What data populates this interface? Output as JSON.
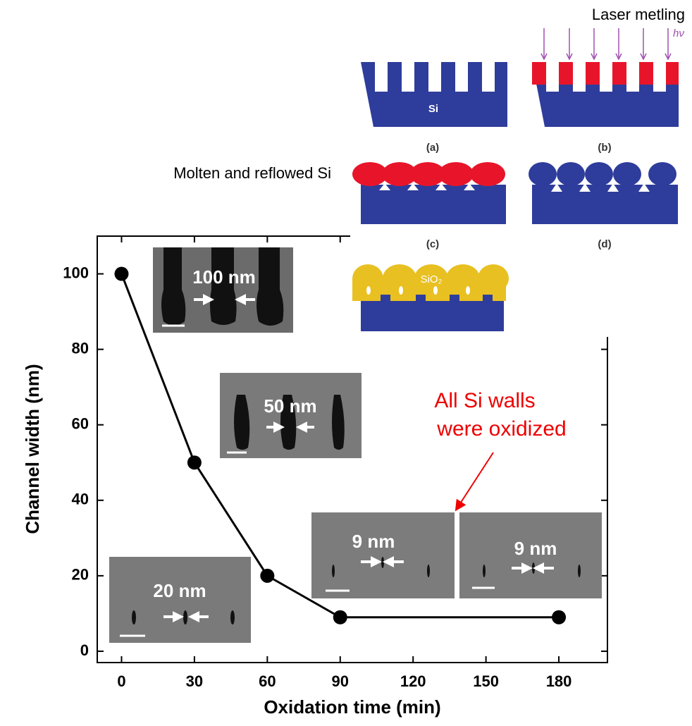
{
  "chart_data": {
    "type": "line",
    "xlabel": "Oxidation time (min)",
    "ylabel": "Channel width (nm)",
    "x": [
      0,
      30,
      60,
      90,
      180
    ],
    "series": [
      {
        "color": "#000000",
        "values": [
          100,
          50,
          20,
          9,
          9
        ]
      }
    ],
    "xlim": [
      -10,
      200
    ],
    "ylim": [
      -3,
      110
    ],
    "xticks": [
      0,
      30,
      60,
      90,
      120,
      150,
      180
    ],
    "yticks": [
      0,
      20,
      40,
      60,
      80,
      100
    ],
    "annotation": [
      "All Si walls",
      "were oxidized"
    ],
    "inset_labels": [
      "100 nm",
      "50 nm",
      "20 nm",
      "9 nm",
      "9 nm"
    ]
  },
  "schematic": {
    "title": "Laser metling",
    "callout": "Molten and reflowed Si",
    "panels": [
      "(a)",
      "(b)",
      "(c)",
      "(d)"
    ],
    "si": "Si",
    "sio2": "SiO₂",
    "hv": "hν"
  }
}
